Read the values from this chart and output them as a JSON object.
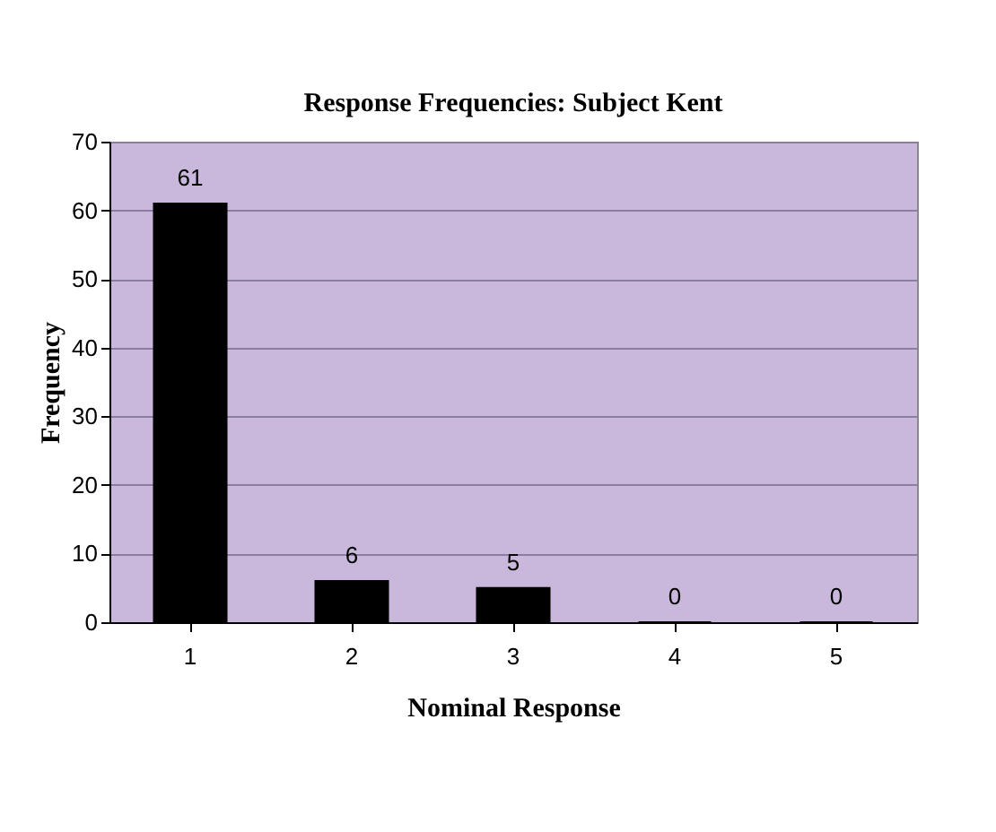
{
  "chart_data": {
    "type": "bar",
    "title": "Response Frequencies: Subject Kent",
    "xlabel": "Nominal Response",
    "ylabel": "Frequency",
    "categories": [
      "1",
      "2",
      "3",
      "4",
      "5"
    ],
    "values": [
      61,
      6,
      5,
      0,
      0
    ],
    "color": "#000000",
    "ylim": [
      0,
      70
    ],
    "yticks": [
      0,
      10,
      20,
      30,
      40,
      50,
      60,
      70
    ],
    "grid": "y",
    "data_labels": true
  }
}
